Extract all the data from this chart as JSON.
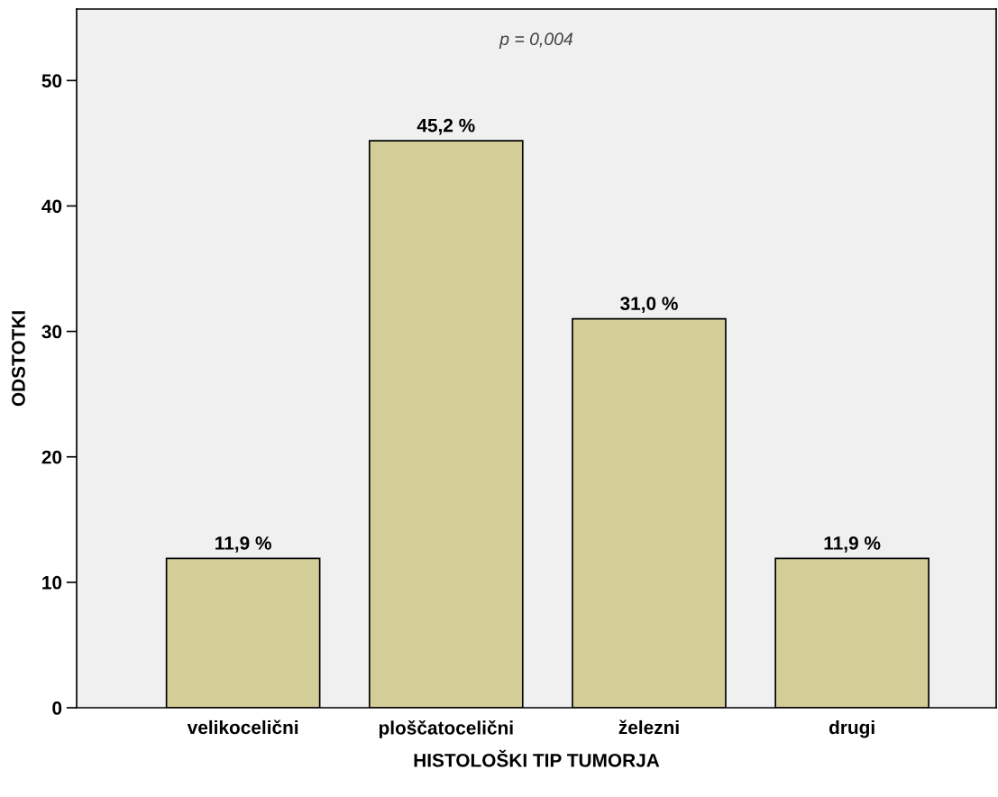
{
  "chart_data": {
    "type": "bar",
    "xlabel": "HISTOLOŠKI TIP TUMORJA",
    "ylabel": "ODSTOTKI",
    "annotations": [
      "p = 0,004"
    ],
    "categories": [
      "velikocelični",
      "ploščatocelični",
      "železni",
      "drugi"
    ],
    "values": [
      11.9,
      45.2,
      31.0,
      11.9
    ],
    "value_labels": [
      "11,9 %",
      "45,2 %",
      "31,0 %",
      "11,9 %"
    ],
    "color": "#d3ce97",
    "ylim": [
      0,
      55.7
    ],
    "yticks": [
      0,
      10,
      20,
      30,
      40,
      50
    ],
    "grid": false,
    "legend": false
  }
}
